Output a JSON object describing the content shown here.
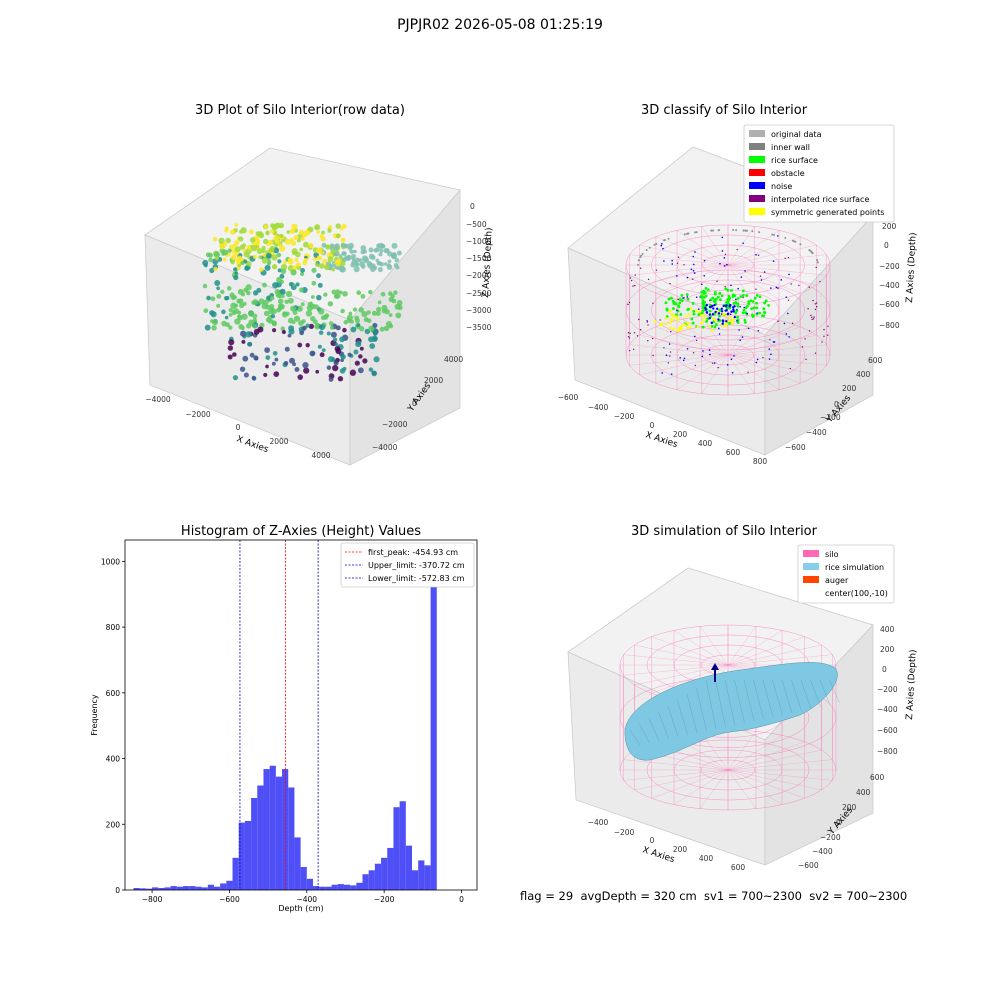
{
  "suptitle": "PJPJR02 2026-05-08 01:25:19",
  "footer": "flag = 29  avgDepth = 320 cm  sv1 = 700~2300  sv2 = 700~2300",
  "colors": {
    "bars": "#4f4ff7",
    "silo": "#ff69b4",
    "rice": "#87ceeb",
    "auger": "#ff4500",
    "first_peak": "#ff0000",
    "limits": "#0000cc"
  },
  "panel1": {
    "title": "3D Plot of Silo Interior(row data)",
    "xlabel": "X Axies",
    "ylabel": "Y Axies",
    "zlabel": "Z Axies (Depth)",
    "xticks": [
      "−4000",
      "−2000",
      "0",
      "2000",
      "4000"
    ],
    "yticks": [
      "−4000",
      "−2000",
      "0",
      "2000",
      "4000"
    ],
    "zticks": [
      "0",
      "−500",
      "−1000",
      "−1500",
      "−2000",
      "−2500",
      "−3000",
      "−3500"
    ]
  },
  "panel2": {
    "title": "3D classify of Silo Interior",
    "xlabel": "X Axies",
    "ylabel": "Y Axies",
    "zlabel": "Z Axies (Depth)",
    "xticks": [
      "−600",
      "−400",
      "−200",
      "0",
      "200",
      "400",
      "600",
      "800"
    ],
    "yticks": [
      "−600",
      "−400",
      "−200",
      "0",
      "200",
      "400",
      "600"
    ],
    "zticks": [
      "200",
      "0",
      "−200",
      "−400",
      "−600",
      "−800"
    ],
    "legend": [
      {
        "label": "original data",
        "color": "#b0b0b0"
      },
      {
        "label": "inner wall",
        "color": "#808080"
      },
      {
        "label": "rice surface",
        "color": "#00ff00"
      },
      {
        "label": "obstacle",
        "color": "#ff0000"
      },
      {
        "label": "noise",
        "color": "#0000ff"
      },
      {
        "label": "interpolated rice surface",
        "color": "#800080"
      },
      {
        "label": "symmetric generated points",
        "color": "#ffff00"
      }
    ]
  },
  "panel3": {
    "title": "Histogram of Z-Axies (Height) Values",
    "legend": [
      {
        "label": "first_peak: -454.93 cm",
        "color": "#ff0000"
      },
      {
        "label": "Upper_limit: -370.72 cm",
        "color": "#0000cc"
      },
      {
        "label": "Lower_limit: -572.83 cm",
        "color": "#0000cc"
      }
    ],
    "xtick_labels": [
      "−800",
      "−600",
      "−400",
      "−200",
      "0"
    ],
    "ytick_labels": [
      "0",
      "200",
      "400",
      "600",
      "800",
      "1000"
    ]
  },
  "panel4": {
    "title": "3D simulation of Silo Interior",
    "xlabel": "X Axies",
    "ylabel": "Y Axies",
    "zlabel": "Z Axies (Depth)",
    "xticks": [
      "−400",
      "−200",
      "0",
      "200",
      "400",
      "600"
    ],
    "yticks": [
      "−600",
      "−400",
      "−200",
      "0",
      "200",
      "400",
      "600"
    ],
    "zticks": [
      "400",
      "200",
      "0",
      "−200",
      "−400",
      "−600",
      "−800"
    ],
    "legend": [
      {
        "label": "silo",
        "color": "#ff69b4"
      },
      {
        "label": "rice simulation",
        "color": "#87ceeb"
      },
      {
        "label": "auger",
        "color": "#ff4500"
      },
      {
        "label": "center(100,-10)",
        "color": ""
      }
    ]
  },
  "chart_data": {
    "type": "bar",
    "title": "Histogram of Z-Axies (Height) Values",
    "xlabel": "Depth (cm)",
    "ylabel": "Frequency",
    "xlim": [
      -870,
      40
    ],
    "ylim": [
      0,
      1065
    ],
    "bin_width": 16,
    "x": [
      -840,
      -824,
      -808,
      -792,
      -776,
      -760,
      -744,
      -728,
      -712,
      -696,
      -680,
      -664,
      -648,
      -632,
      -616,
      -600,
      -584,
      -568,
      -552,
      -536,
      -520,
      -504,
      -488,
      -472,
      -456,
      -440,
      -424,
      -408,
      -392,
      -376,
      -360,
      -344,
      -328,
      -312,
      -296,
      -280,
      -264,
      -248,
      -232,
      -216,
      -200,
      -184,
      -168,
      -152,
      -136,
      -120,
      -104,
      -88,
      -72,
      -56,
      -40,
      -24,
      -8
    ],
    "values": [
      6,
      5,
      4,
      8,
      6,
      8,
      12,
      10,
      12,
      12,
      10,
      8,
      16,
      10,
      20,
      28,
      98,
      205,
      210,
      280,
      318,
      368,
      378,
      345,
      368,
      312,
      160,
      70,
      34,
      12,
      10,
      10,
      16,
      18,
      16,
      14,
      22,
      48,
      60,
      80,
      98,
      128,
      252,
      270,
      135,
      60,
      90,
      75,
      1030,
      0,
      0,
      0,
      0
    ],
    "vlines": [
      {
        "name": "first_peak",
        "x": -454.93
      },
      {
        "name": "Upper_limit",
        "x": -370.72
      },
      {
        "name": "Lower_limit",
        "x": -572.83
      }
    ],
    "xticks": [
      -800,
      -600,
      -400,
      -200,
      0
    ],
    "yticks": [
      0,
      200,
      400,
      600,
      800,
      1000
    ],
    "grid": false,
    "legend_position": "top-right"
  }
}
